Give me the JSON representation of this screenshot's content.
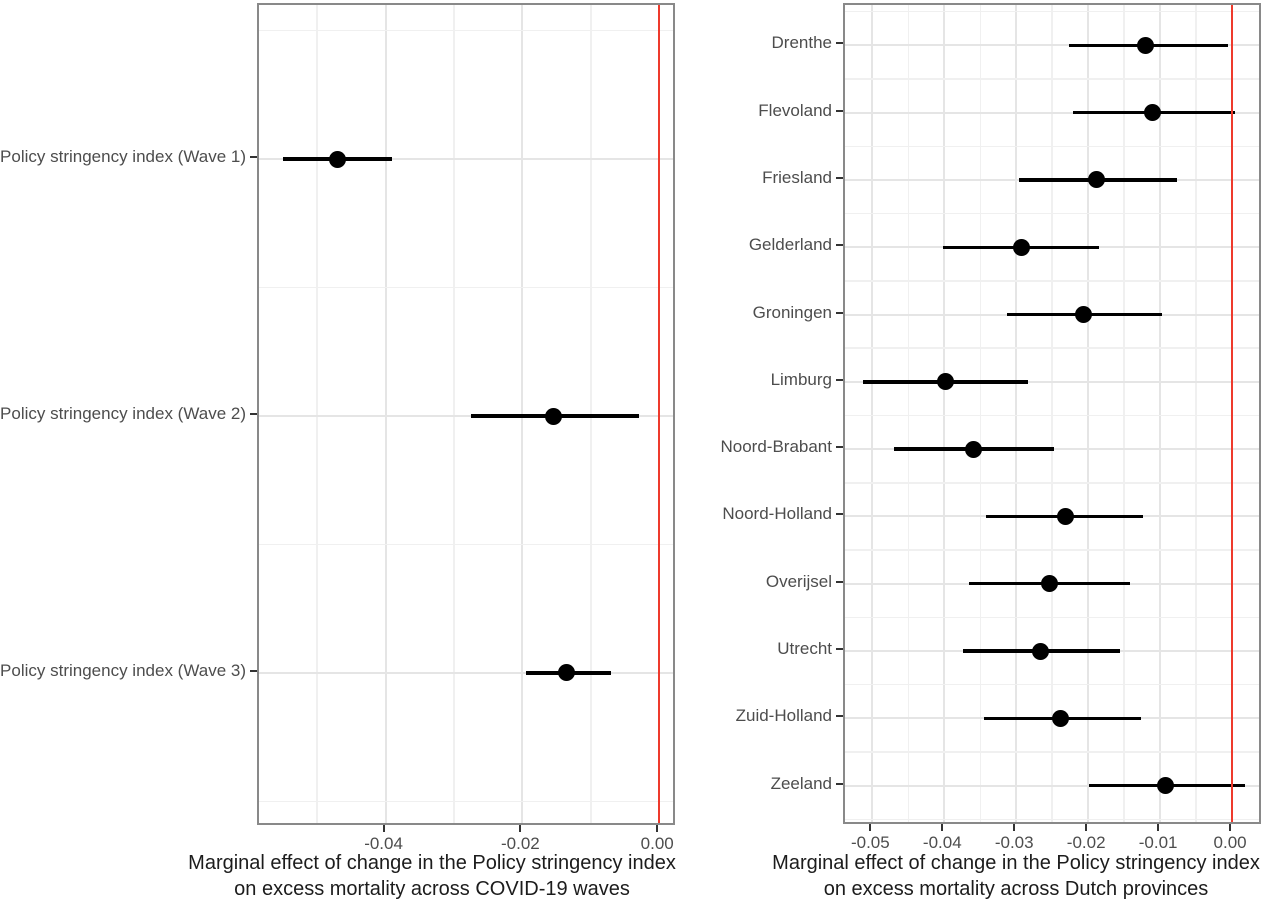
{
  "figure": {
    "description": "Two-panel forest plot of marginal effects with 95% confidence intervals and red reference line at zero",
    "background": "#ffffff"
  },
  "colors": {
    "reference_line": "#ee3a2c",
    "point": "#000000",
    "ci_line": "#000000",
    "panel_border": "#898989",
    "grid_major": "#e5e5e5",
    "grid_minor": "#f0f0f0",
    "axis_text": "#4d4d4d",
    "axis_title": "#1c1c1c",
    "tick_mark": "#333333"
  },
  "chart_data": [
    {
      "type": "scatter",
      "subtype": "forest_plot_with_ci",
      "orientation": "horizontal",
      "title": "",
      "xlabel_line1": "Marginal effect of change in the Policy stringency index",
      "xlabel_line2": "on excess mortality across COVID-19 waves",
      "categories": [
        "Policy stringency index (Wave 1)",
        "Policy stringency index (Wave 2)",
        "Policy stringency index (Wave 3)"
      ],
      "estimates": [
        -0.047,
        -0.0155,
        -0.0135
      ],
      "ci_lower": [
        -0.055,
        -0.0275,
        -0.0195
      ],
      "ci_upper": [
        -0.039,
        -0.003,
        -0.007
      ],
      "x_ticks": [
        -0.04,
        -0.02,
        0.0
      ],
      "x_tick_labels": [
        "-0.04",
        "-0.02",
        "0.00"
      ],
      "x_minor_gridlines": [
        -0.05,
        -0.03,
        -0.01
      ],
      "xlim": [
        -0.0585,
        0.0026
      ],
      "reference_line_x": 0,
      "grid": true,
      "legend": false
    },
    {
      "type": "scatter",
      "subtype": "forest_plot_with_ci",
      "orientation": "horizontal",
      "title": "",
      "xlabel_line1": "Marginal effect of change in the Policy stringency index",
      "xlabel_line2": "on excess mortality across Dutch provinces",
      "categories": [
        "Drenthe",
        "Flevoland",
        "Friesland",
        "Gelderland",
        "Groningen",
        "Limburg",
        "Noord-Brabant",
        "Noord-Holland",
        "Overijsel",
        "Utrecht",
        "Zuid-Holland",
        "Zeeland"
      ],
      "estimates": [
        -0.012,
        -0.011,
        -0.0188,
        -0.0293,
        -0.0206,
        -0.0399,
        -0.0359,
        -0.0232,
        -0.0254,
        -0.0266,
        -0.0238,
        -0.0092
      ],
      "ci_lower": [
        -0.0227,
        -0.0221,
        -0.0296,
        -0.0402,
        -0.0313,
        -0.0513,
        -0.047,
        -0.0342,
        -0.0366,
        -0.0374,
        -0.0345,
        -0.0199
      ],
      "ci_upper": [
        -0.0006,
        0.0004,
        -0.0077,
        -0.0185,
        -0.0097,
        -0.0284,
        -0.0248,
        -0.0124,
        -0.0142,
        -0.0156,
        -0.0127,
        0.0018
      ],
      "x_ticks": [
        -0.05,
        -0.04,
        -0.03,
        -0.02,
        -0.01,
        0.0
      ],
      "x_tick_labels": [
        "-0.05",
        "-0.04",
        "-0.03",
        "-0.02",
        "-0.01",
        "0.00"
      ],
      "x_minor_gridlines": [
        -0.045,
        -0.035,
        -0.025,
        -0.015,
        -0.005
      ],
      "xlim": [
        -0.0538,
        0.0043
      ],
      "reference_line_x": 0,
      "grid": true,
      "legend": false
    }
  ]
}
